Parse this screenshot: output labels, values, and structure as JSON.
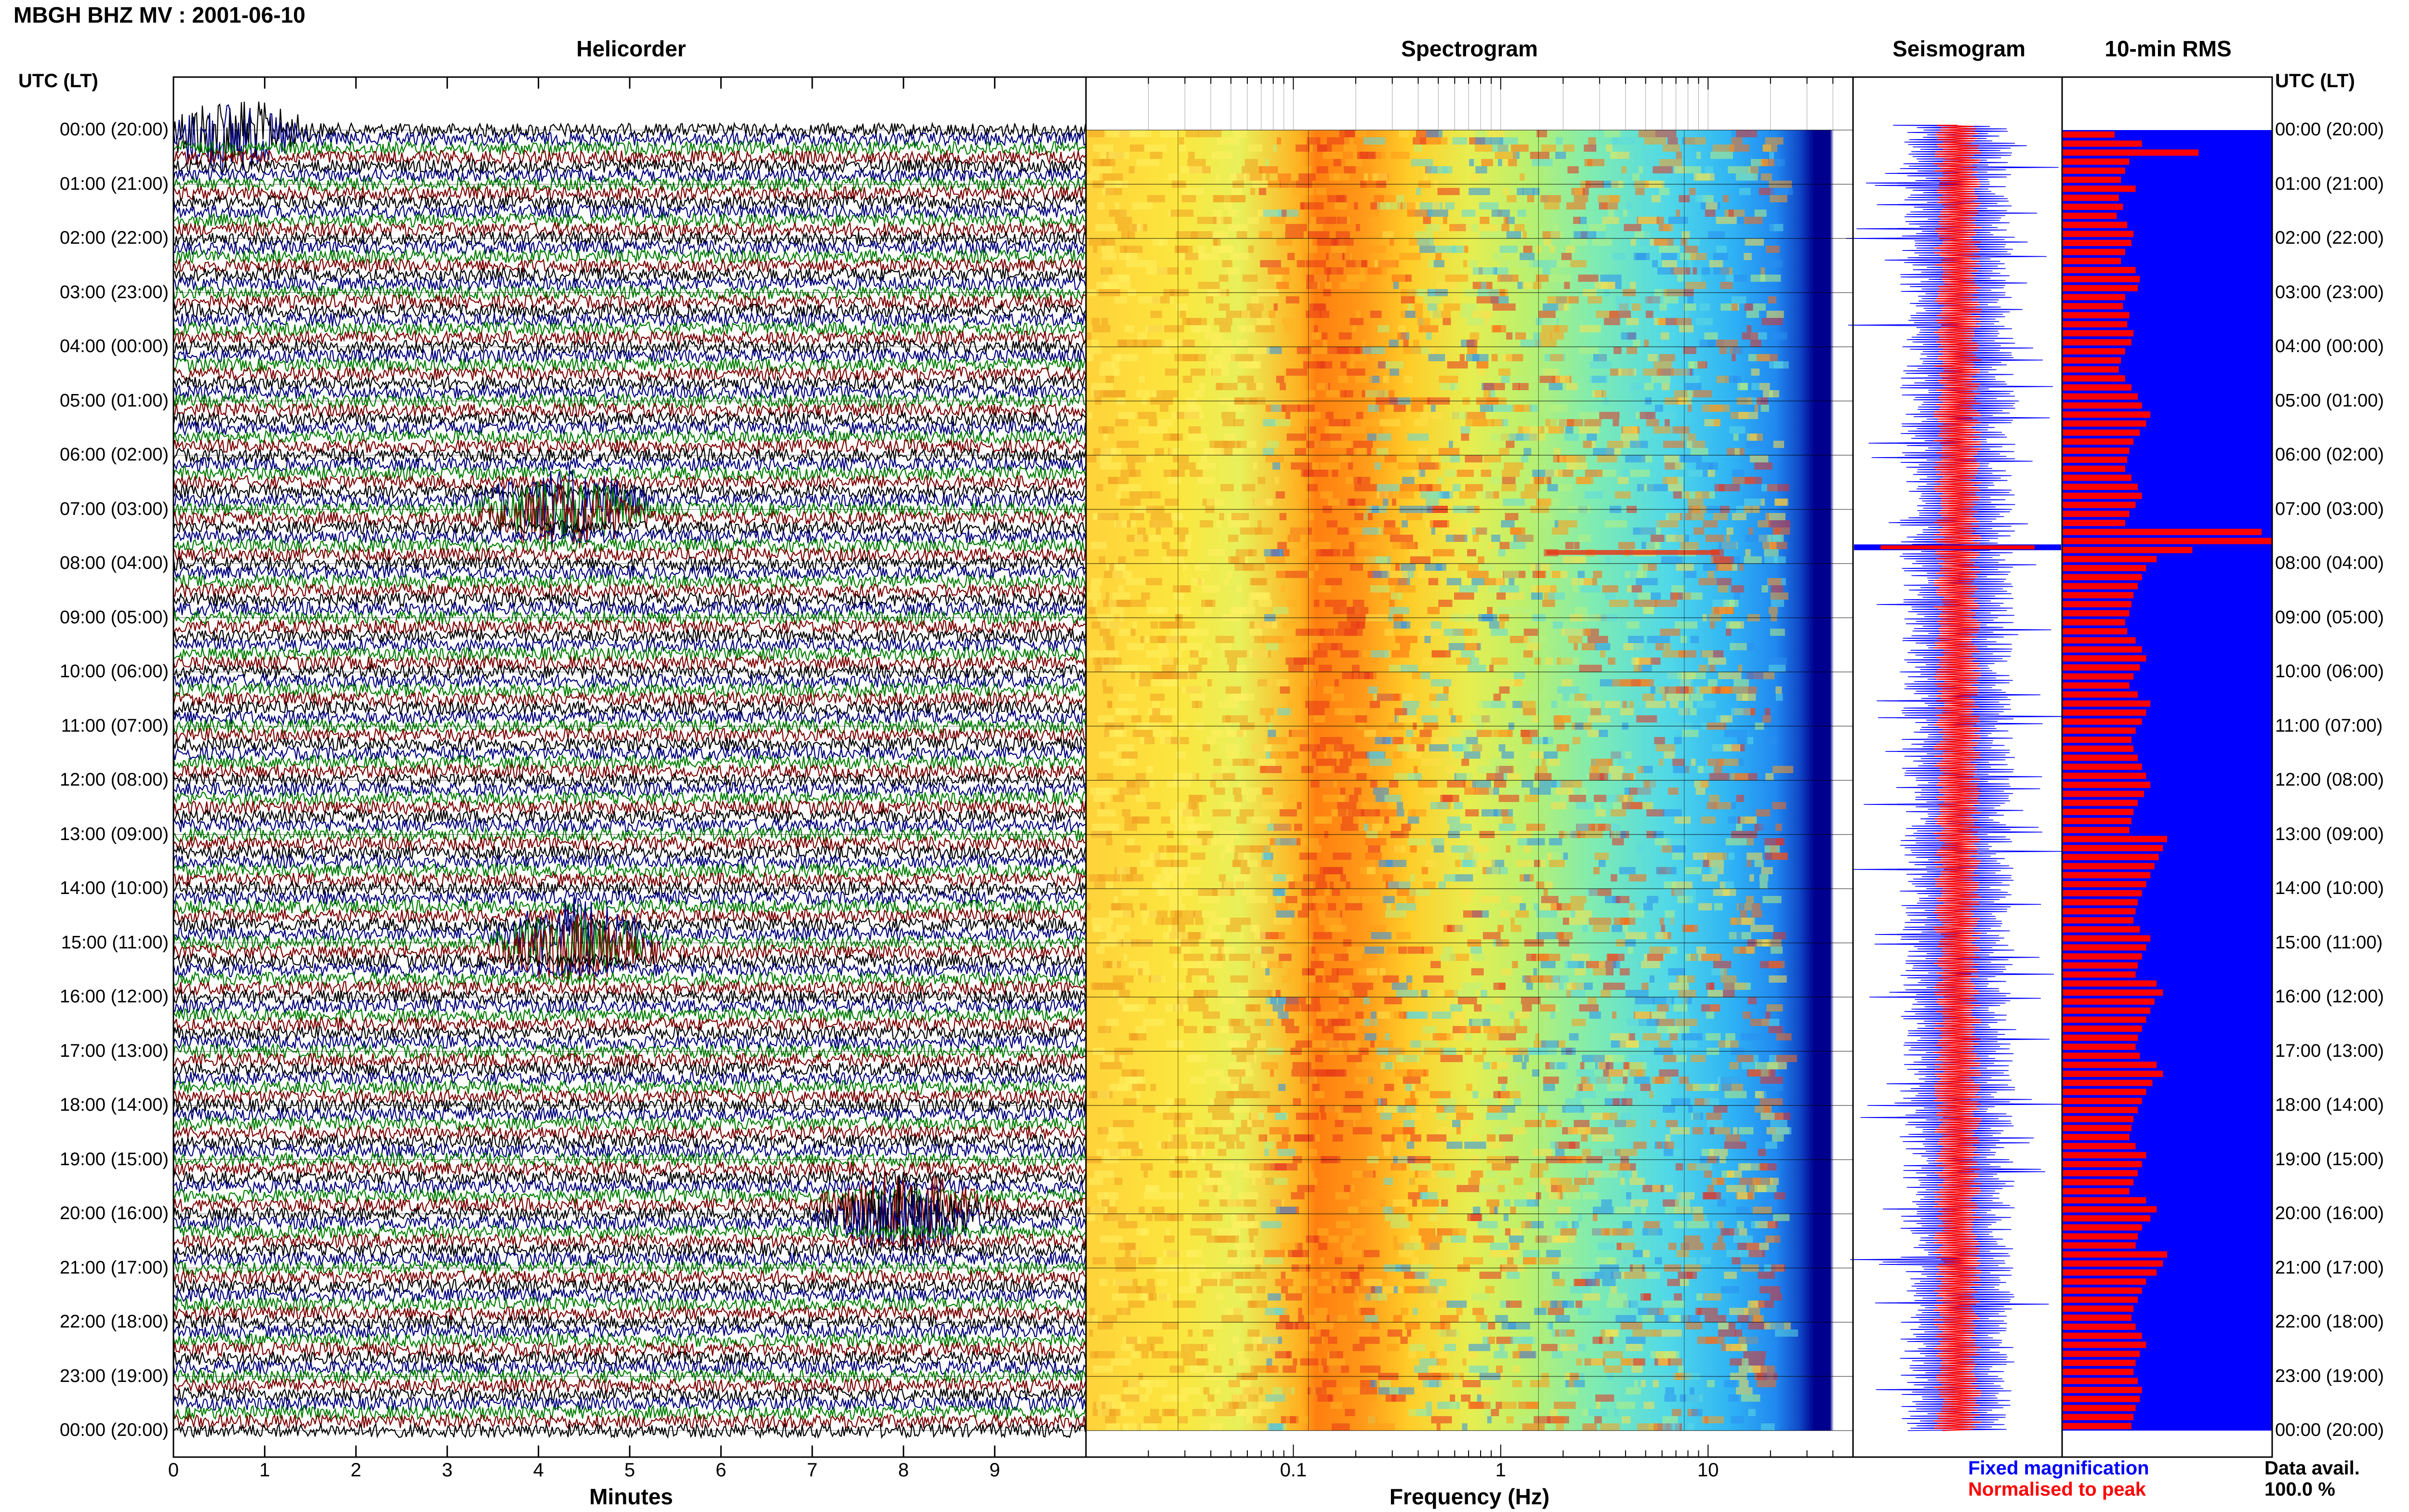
{
  "header": {
    "title": "MBGH BHZ MV : 2001-06-10"
  },
  "panels": {
    "helicorder": "Helicorder",
    "spectrogram": "Spectrogram",
    "seismogram": "Seismogram",
    "rms": "10-min RMS"
  },
  "time_axis": {
    "header": "UTC (LT)",
    "labels": [
      "00:00 (20:00)",
      "01:00 (21:00)",
      "02:00 (22:00)",
      "03:00 (23:00)",
      "04:00 (00:00)",
      "05:00 (01:00)",
      "06:00 (02:00)",
      "07:00 (03:00)",
      "08:00 (04:00)",
      "09:00 (05:00)",
      "10:00 (06:00)",
      "11:00 (07:00)",
      "12:00 (08:00)",
      "13:00 (09:00)",
      "14:00 (10:00)",
      "15:00 (11:00)",
      "16:00 (12:00)",
      "17:00 (13:00)",
      "18:00 (14:00)",
      "19:00 (15:00)",
      "20:00 (16:00)",
      "21:00 (17:00)",
      "22:00 (18:00)",
      "23:00 (19:00)",
      "00:00 (20:00)"
    ]
  },
  "legend": {
    "fixed": "Fixed magnification",
    "normalised": "Normalised to peak",
    "data_avail_label": "Data avail.",
    "data_avail_value": "100.0 %"
  },
  "colors": {
    "helicorder_traces": [
      "#000000",
      "#00007f",
      "#007f00",
      "#7f0000"
    ],
    "seismogram_fixed": "#0000ff",
    "seismogram_normalised": "#ff0000",
    "rms_bar": "#ff0000",
    "rms_background": "#0000ff"
  },
  "chart_data": [
    {
      "type": "line",
      "name": "helicorder",
      "title": "Helicorder",
      "xlabel": "Minutes",
      "x_ticks": [
        "0",
        "1",
        "2",
        "3",
        "4",
        "5",
        "6",
        "7",
        "8",
        "9"
      ],
      "xlim": [
        0,
        10
      ],
      "lines_per_hour": 6,
      "hours": 24,
      "notable_events": [
        {
          "hour": 0,
          "minute": 0.6,
          "color": "#00007f"
        },
        {
          "hour": 7,
          "minute": 4.3,
          "color": "#7f0000"
        },
        {
          "hour": 15,
          "minute": 4.4,
          "color": "#007f00"
        },
        {
          "hour": 20,
          "minute": 8.0,
          "color": "#007f00"
        }
      ]
    },
    {
      "type": "heatmap",
      "name": "spectrogram",
      "title": "Spectrogram",
      "xlabel": "Frequency (Hz)",
      "x_scale": "log",
      "xlim": [
        0.01,
        50
      ],
      "x_ticks": [
        "0.1",
        "1",
        "10"
      ],
      "dominant_band_hz": [
        0.2,
        0.6
      ],
      "colormap": "jet"
    },
    {
      "type": "line",
      "name": "seismogram",
      "title": "Seismogram",
      "series": [
        {
          "name": "Fixed magnification",
          "color": "#0000ff"
        },
        {
          "name": "Normalised to peak",
          "color": "#ff0000"
        }
      ],
      "peak_time_utc": "07:40"
    },
    {
      "type": "bar",
      "name": "rms",
      "title": "10-min RMS",
      "orientation": "horizontal",
      "xlim": [
        0,
        1
      ],
      "values": [
        0.25,
        0.38,
        0.65,
        0.32,
        0.3,
        0.28,
        0.35,
        0.27,
        0.29,
        0.26,
        0.31,
        0.34,
        0.33,
        0.3,
        0.28,
        0.35,
        0.37,
        0.36,
        0.3,
        0.29,
        0.32,
        0.31,
        0.34,
        0.33,
        0.3,
        0.28,
        0.27,
        0.3,
        0.33,
        0.36,
        0.38,
        0.42,
        0.4,
        0.37,
        0.34,
        0.32,
        0.31,
        0.3,
        0.33,
        0.36,
        0.38,
        0.35,
        0.32,
        0.3,
        0.95,
        1.0,
        0.62,
        0.45,
        0.4,
        0.38,
        0.36,
        0.34,
        0.33,
        0.32,
        0.3,
        0.31,
        0.35,
        0.38,
        0.4,
        0.37,
        0.34,
        0.32,
        0.36,
        0.42,
        0.4,
        0.38,
        0.35,
        0.33,
        0.34,
        0.36,
        0.38,
        0.4,
        0.42,
        0.39,
        0.36,
        0.34,
        0.33,
        0.32,
        0.5,
        0.48,
        0.46,
        0.44,
        0.42,
        0.4,
        0.38,
        0.36,
        0.35,
        0.34,
        0.37,
        0.42,
        0.4,
        0.38,
        0.36,
        0.35,
        0.45,
        0.48,
        0.44,
        0.42,
        0.4,
        0.38,
        0.36,
        0.35,
        0.37,
        0.45,
        0.48,
        0.43,
        0.4,
        0.38,
        0.36,
        0.34,
        0.33,
        0.32,
        0.35,
        0.4,
        0.38,
        0.36,
        0.34,
        0.32,
        0.4,
        0.45,
        0.42,
        0.38,
        0.36,
        0.35,
        0.5,
        0.48,
        0.45,
        0.4,
        0.38,
        0.36,
        0.34,
        0.33,
        0.35,
        0.38,
        0.4,
        0.37,
        0.35,
        0.34,
        0.36,
        0.38,
        0.37,
        0.35,
        0.34,
        0.33
      ]
    }
  ]
}
